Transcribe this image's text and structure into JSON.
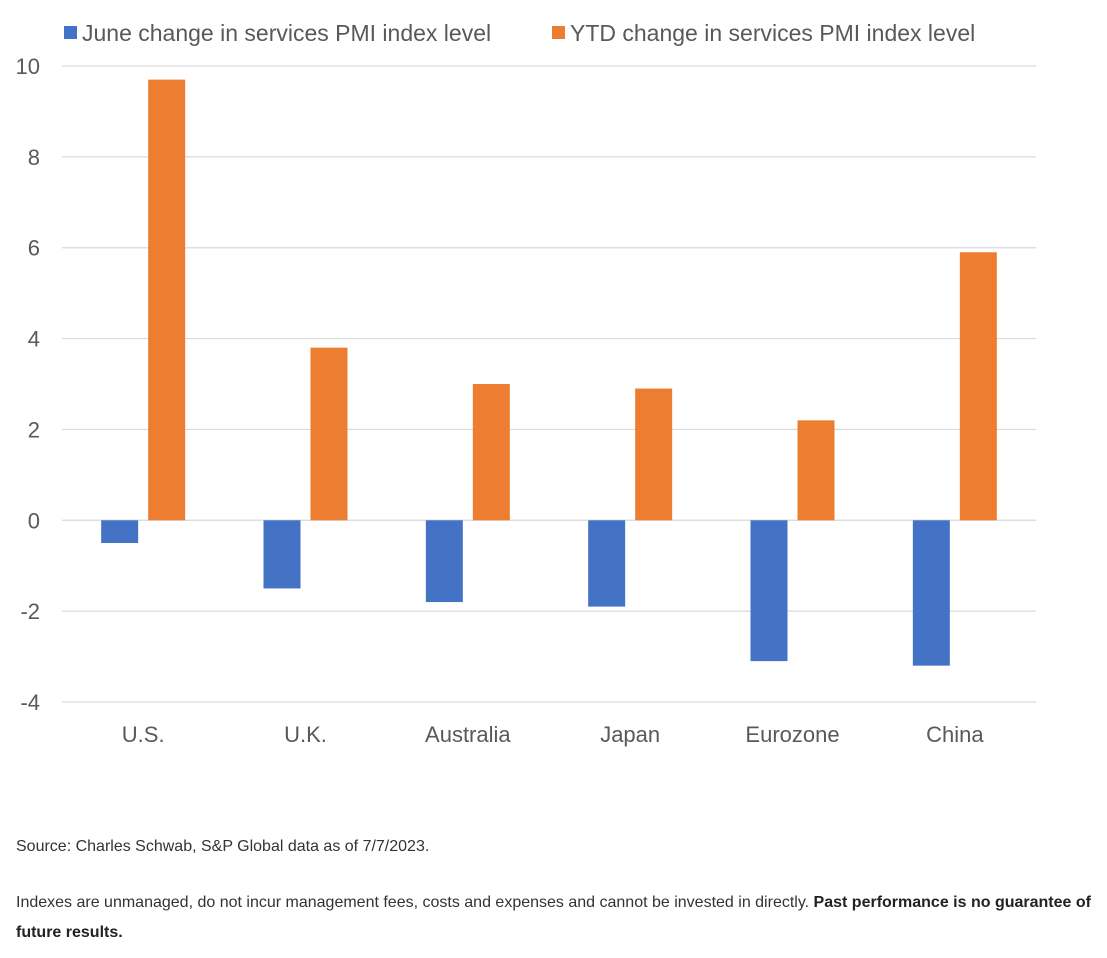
{
  "chart_data": {
    "type": "bar",
    "title": "",
    "xlabel": "",
    "ylabel": "",
    "categories": [
      "U.S.",
      "U.K.",
      "Australia",
      "Japan",
      "Eurozone",
      "China"
    ],
    "series": [
      {
        "name": "June change in services PMI index level",
        "color": "#4472C4",
        "values": [
          -0.5,
          -1.5,
          -1.8,
          -1.9,
          -3.1,
          -3.2
        ]
      },
      {
        "name": "YTD change in services PMI index level",
        "color": "#ED7D31",
        "values": [
          9.7,
          3.8,
          3.0,
          2.9,
          2.2,
          5.9
        ]
      }
    ],
    "ylim": [
      -4,
      10
    ],
    "yticks": [
      "10",
      "8",
      "6",
      "4",
      "2",
      "0",
      "-2",
      "-4"
    ],
    "grid": true,
    "legend": "top"
  },
  "footer": {
    "source": "Source: Charles Schwab, S&P Global data as of 7/7/2023.",
    "disclaimer": "Indexes are unmanaged, do not incur management fees, costs and expenses and cannot be invested in directly.",
    "disclaimer_bold": "Past performance is no guarantee of future results."
  }
}
